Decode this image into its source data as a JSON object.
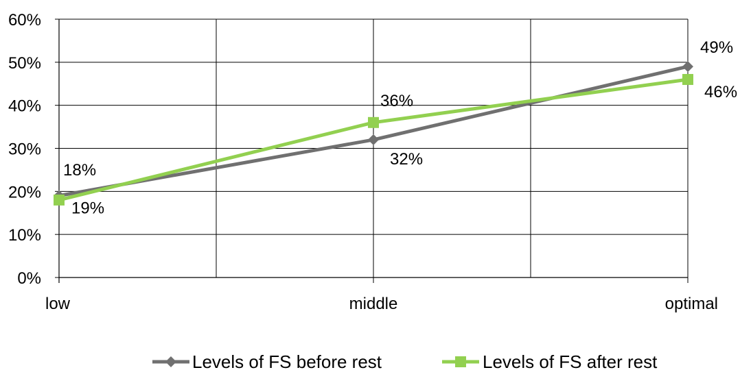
{
  "chart_data": {
    "type": "line",
    "categories": [
      "low",
      "middle",
      "optimal"
    ],
    "ylim": [
      0,
      60
    ],
    "yticks": [
      "0%",
      "10%",
      "20%",
      "30%",
      "40%",
      "50%",
      "60%"
    ],
    "grid": true,
    "legend_position": "bottom",
    "series": [
      {
        "name": "Levels of FS before rest",
        "values": [
          19,
          32,
          49
        ],
        "labels": [
          "19%",
          "32%",
          "49%"
        ],
        "color": "#707070",
        "marker": "diamond"
      },
      {
        "name": "Levels of FS after rest",
        "values": [
          18,
          36,
          46
        ],
        "labels": [
          "18%",
          "36%",
          "46%"
        ],
        "color": "#92D050",
        "marker": "square"
      }
    ]
  }
}
